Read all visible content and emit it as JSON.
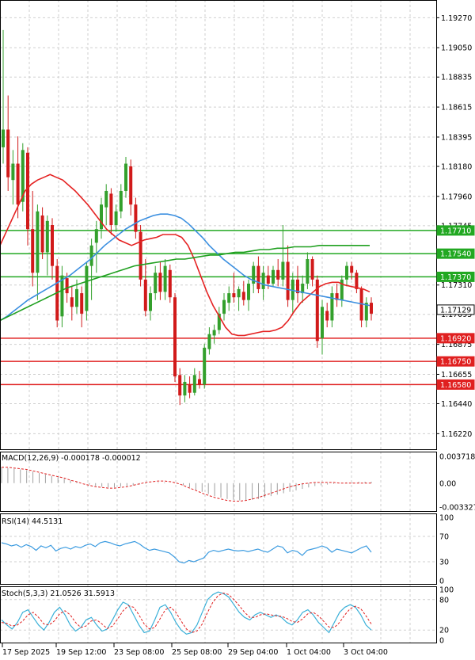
{
  "colors": {
    "background": "#ffffff",
    "grid": "#cfcfcf",
    "frame": "#000000",
    "bull_candle": "#33a02c",
    "bear_candle": "#d11a1a",
    "ma_fast": "#e52222",
    "ma_mid": "#3b8fe0",
    "ma_slow": "#20a020",
    "resistance": "#22a822",
    "support": "#e02020",
    "macd_hist": "#a0a0a0",
    "macd_signal": "#e02020",
    "rsi": "#3b9be0",
    "stoch_main": "#3ab0d8",
    "stoch_signal": "#e02020",
    "price_tag": "#ffffff"
  },
  "chart_data": [
    {
      "type": "candlestick",
      "title": "",
      "ylim": [
        1.161,
        1.194
      ],
      "y_ticks": [
        "1.19270",
        "1.19050",
        "1.18835",
        "1.18615",
        "1.18395",
        "1.18180",
        "1.17960",
        "1.17745",
        "1.17310",
        "1.17095",
        "1.16875",
        "1.16655",
        "1.16440",
        "1.16220"
      ],
      "current_price": "1.17129",
      "current_price_value": 1.17129,
      "resistance_levels": [
        {
          "label": "1.17710",
          "value": 1.1771
        },
        {
          "label": "1.17540",
          "value": 1.1754
        },
        {
          "label": "1.17370",
          "value": 1.1737
        }
      ],
      "support_levels": [
        {
          "label": "1.16920",
          "value": 1.1692
        },
        {
          "label": "1.16750",
          "value": 1.1675
        },
        {
          "label": "1.16580",
          "value": 1.1658
        }
      ],
      "candles": [
        [
          1.1832,
          1.1918,
          1.182,
          1.1845
        ],
        [
          1.1845,
          1.187,
          1.18,
          1.181
        ],
        [
          1.1808,
          1.183,
          1.179,
          1.182
        ],
        [
          1.182,
          1.184,
          1.178,
          1.179
        ],
        [
          1.1792,
          1.1835,
          1.1785,
          1.183
        ],
        [
          1.1828,
          1.1832,
          1.176,
          1.1772
        ],
        [
          1.1772,
          1.18,
          1.173,
          1.174
        ],
        [
          1.174,
          1.179,
          1.172,
          1.1785
        ],
        [
          1.1782,
          1.1788,
          1.175,
          1.1755
        ],
        [
          1.1755,
          1.1782,
          1.1738,
          1.1778
        ],
        [
          1.1775,
          1.178,
          1.1735,
          1.1745
        ],
        [
          1.1745,
          1.175,
          1.17,
          1.1705
        ],
        [
          1.1708,
          1.1745,
          1.17,
          1.1738
        ],
        [
          1.1736,
          1.174,
          1.1718,
          1.1725
        ],
        [
          1.1722,
          1.173,
          1.1705,
          1.1715
        ],
        [
          1.1715,
          1.1735,
          1.171,
          1.1728
        ],
        [
          1.1725,
          1.173,
          1.17,
          1.171
        ],
        [
          1.1712,
          1.1748,
          1.1705,
          1.1745
        ],
        [
          1.1745,
          1.1765,
          1.172,
          1.176
        ],
        [
          1.1762,
          1.1778,
          1.174,
          1.1772
        ],
        [
          1.1772,
          1.1795,
          1.1765,
          1.179
        ],
        [
          1.1788,
          1.1805,
          1.1775,
          1.18
        ],
        [
          1.1798,
          1.1802,
          1.1768,
          1.1775
        ],
        [
          1.1775,
          1.179,
          1.177,
          1.1785
        ],
        [
          1.1785,
          1.1805,
          1.178,
          1.18
        ],
        [
          1.18,
          1.1825,
          1.1795,
          1.182
        ],
        [
          1.1818,
          1.1823,
          1.1782,
          1.179
        ],
        [
          1.179,
          1.1795,
          1.1765,
          1.177
        ],
        [
          1.177,
          1.1775,
          1.173,
          1.1735
        ],
        [
          1.1735,
          1.175,
          1.1708,
          1.1712
        ],
        [
          1.1712,
          1.173,
          1.1705,
          1.1725
        ],
        [
          1.1725,
          1.1745,
          1.172,
          1.174
        ],
        [
          1.174,
          1.1748,
          1.172,
          1.1726
        ],
        [
          1.1726,
          1.175,
          1.172,
          1.1745
        ],
        [
          1.1742,
          1.1746,
          1.1718,
          1.1722
        ],
        [
          1.1722,
          1.1725,
          1.166,
          1.1664
        ],
        [
          1.1665,
          1.167,
          1.1643,
          1.165
        ],
        [
          1.165,
          1.1665,
          1.1645,
          1.166
        ],
        [
          1.1658,
          1.1664,
          1.1648,
          1.1652
        ],
        [
          1.1652,
          1.167,
          1.165,
          1.1665
        ],
        [
          1.1662,
          1.1668,
          1.1655,
          1.1658
        ],
        [
          1.1658,
          1.1688,
          1.1655,
          1.1685
        ],
        [
          1.1684,
          1.17,
          1.168,
          1.1695
        ],
        [
          1.1694,
          1.1702,
          1.1688,
          1.1698
        ],
        [
          1.1698,
          1.1715,
          1.1695,
          1.171
        ],
        [
          1.171,
          1.1725,
          1.1705,
          1.172
        ],
        [
          1.1718,
          1.173,
          1.1712,
          1.1725
        ],
        [
          1.1725,
          1.174,
          1.1718,
          1.1722
        ],
        [
          1.1722,
          1.173,
          1.1712,
          1.1728
        ],
        [
          1.1726,
          1.1734,
          1.1716,
          1.172
        ],
        [
          1.172,
          1.1735,
          1.1712,
          1.1732
        ],
        [
          1.1732,
          1.1748,
          1.1725,
          1.1745
        ],
        [
          1.1745,
          1.1752,
          1.1725,
          1.1728
        ],
        [
          1.1728,
          1.1745,
          1.172,
          1.174
        ],
        [
          1.1738,
          1.1745,
          1.1728,
          1.1732
        ],
        [
          1.1732,
          1.1745,
          1.173,
          1.1742
        ],
        [
          1.1742,
          1.175,
          1.173,
          1.1735
        ],
        [
          1.1735,
          1.1775,
          1.173,
          1.1748
        ],
        [
          1.1748,
          1.176,
          1.1715,
          1.172
        ],
        [
          1.172,
          1.174,
          1.171,
          1.1735
        ],
        [
          1.1735,
          1.1745,
          1.1718,
          1.1725
        ],
        [
          1.1725,
          1.1738,
          1.1718,
          1.1732
        ],
        [
          1.1732,
          1.1755,
          1.1728,
          1.175
        ],
        [
          1.175,
          1.1752,
          1.173,
          1.1735
        ],
        [
          1.1735,
          1.1738,
          1.1685,
          1.169
        ],
        [
          1.1692,
          1.172,
          1.168,
          1.1715
        ],
        [
          1.1712,
          1.1718,
          1.17,
          1.1705
        ],
        [
          1.1705,
          1.173,
          1.17,
          1.1725
        ],
        [
          1.1725,
          1.1732,
          1.1715,
          1.172
        ],
        [
          1.172,
          1.1738,
          1.1715,
          1.1735
        ],
        [
          1.1735,
          1.1748,
          1.173,
          1.1745
        ],
        [
          1.1745,
          1.1748,
          1.1735,
          1.174
        ],
        [
          1.174,
          1.1742,
          1.1725,
          1.1728
        ],
        [
          1.1728,
          1.173,
          1.17,
          1.1705
        ],
        [
          1.1705,
          1.1722,
          1.17,
          1.1718
        ],
        [
          1.1718,
          1.1722,
          1.1705,
          1.171
        ]
      ],
      "ma_fast": [
        1.176,
        1.177,
        1.178,
        1.179,
        1.18,
        1.1805,
        1.1808,
        1.181,
        1.1812,
        1.181,
        1.1808,
        1.1804,
        1.18,
        1.1795,
        1.179,
        1.1784,
        1.1778,
        1.1772,
        1.1768,
        1.1764,
        1.1762,
        1.176,
        1.1762,
        1.1764,
        1.1765,
        1.1766,
        1.1768,
        1.1768,
        1.1768,
        1.1766,
        1.176,
        1.175,
        1.1738,
        1.1726,
        1.1716,
        1.1708,
        1.17,
        1.1695,
        1.1694,
        1.1694,
        1.1695,
        1.1696,
        1.1697,
        1.1697,
        1.1698,
        1.17,
        1.1705,
        1.1712,
        1.1718,
        1.1722,
        1.1726,
        1.173,
        1.1732,
        1.1733,
        1.1733,
        1.1731,
        1.173,
        1.1729,
        1.1728,
        1.1726
      ],
      "ma_mid": [
        1.1705,
        1.1708,
        1.1712,
        1.1716,
        1.172,
        1.1723,
        1.1726,
        1.1729,
        1.1732,
        1.1735,
        1.1738,
        1.1742,
        1.1746,
        1.175,
        1.1755,
        1.176,
        1.1764,
        1.1768,
        1.1772,
        1.1775,
        1.1778,
        1.178,
        1.1782,
        1.1783,
        1.1783,
        1.1782,
        1.178,
        1.1776,
        1.1771,
        1.1766,
        1.176,
        1.1755,
        1.175,
        1.1746,
        1.1742,
        1.1738,
        1.1735,
        1.1733,
        1.1731,
        1.173,
        1.1729,
        1.1728,
        1.1727,
        1.1726,
        1.1725,
        1.1724,
        1.1723,
        1.1722,
        1.1721,
        1.172,
        1.1719,
        1.1718,
        1.1717,
        1.1716
      ],
      "ma_slow": [
        1.1705,
        1.1708,
        1.1711,
        1.1714,
        1.1717,
        1.172,
        1.1723,
        1.1726,
        1.1729,
        1.1731,
        1.1733,
        1.1735,
        1.1737,
        1.1739,
        1.1741,
        1.1743,
        1.1745,
        1.1746,
        1.1747,
        1.1748,
        1.1749,
        1.175,
        1.175,
        1.1751,
        1.1752,
        1.1753,
        1.1753,
        1.1754,
        1.1755,
        1.1755,
        1.1756,
        1.1757,
        1.1757,
        1.1758,
        1.1758,
        1.1759,
        1.1759,
        1.1759,
        1.176,
        1.176,
        1.176,
        1.176,
        1.176,
        1.176,
        1.176
      ]
    },
    {
      "type": "histogram+line",
      "label": "MACD(12,26,9) -0.000178 -0.000012",
      "ylim": [
        -0.003327,
        0.003718
      ],
      "y_ticks": [
        "0.003718",
        "0.00",
        "-0.003327"
      ],
      "histogram": [
        0.0022,
        0.0021,
        0.002,
        0.0019,
        0.0018,
        0.0016,
        0.0014,
        0.0012,
        0.001,
        0.0008,
        0.0006,
        0.0004,
        0.0002,
        0.0,
        -0.0002,
        -0.0004,
        -0.0005,
        -0.0006,
        -0.0006,
        -0.0005,
        -0.0004,
        -0.0003,
        -0.0002,
        -0.0001,
        0.0,
        0.0001,
        0.0001,
        0.0,
        -0.0001,
        -0.0003,
        -0.0006,
        -0.0009,
        -0.0012,
        -0.0015,
        -0.0018,
        -0.002,
        -0.0022,
        -0.0023,
        -0.0024,
        -0.0024,
        -0.0023,
        -0.0022,
        -0.002,
        -0.0018,
        -0.0016,
        -0.0014,
        -0.0012,
        -0.001,
        -0.0008,
        -0.0006,
        -0.0004,
        -0.0003,
        -0.0002,
        -0.0001,
        0.0,
        0.0001,
        0.0001,
        0.0002,
        0.0002,
        0.0002
      ],
      "signal": [
        0.0022,
        0.0022,
        0.0021,
        0.002,
        0.0019,
        0.0017,
        0.0015,
        0.0013,
        0.0011,
        0.0009,
        0.0007,
        0.0004,
        0.0002,
        -0.0001,
        -0.0003,
        -0.0005,
        -0.0006,
        -0.0007,
        -0.0007,
        -0.0006,
        -0.0005,
        -0.0003,
        -0.0001,
        0.0001,
        0.0002,
        0.0003,
        0.0003,
        0.0002,
        0.0,
        -0.0003,
        -0.0007,
        -0.001,
        -0.0014,
        -0.0017,
        -0.002,
        -0.0022,
        -0.0024,
        -0.0025,
        -0.0025,
        -0.0024,
        -0.0022,
        -0.002,
        -0.0017,
        -0.0014,
        -0.0011,
        -0.0008,
        -0.0005,
        -0.0003,
        -0.0001,
        0.0,
        0.0001,
        0.0001,
        0.0001,
        0.0001,
        0.0,
        0.0,
        0.0,
        0.0,
        0.0,
        0.0
      ]
    },
    {
      "type": "line",
      "label": "RSI(14) 44.5131",
      "ylim": [
        0,
        100
      ],
      "y_ticks": [
        "100",
        "70",
        "30",
        "0"
      ],
      "values": [
        60,
        58,
        55,
        57,
        53,
        57,
        54,
        48,
        55,
        52,
        56,
        47,
        51,
        53,
        50,
        54,
        52,
        56,
        58,
        54,
        60,
        62,
        60,
        57,
        55,
        58,
        60,
        62,
        58,
        52,
        48,
        50,
        48,
        46,
        44,
        38,
        30,
        28,
        32,
        30,
        33,
        36,
        45,
        48,
        46,
        48,
        50,
        48,
        47,
        48,
        46,
        48,
        50,
        47,
        45,
        50,
        55,
        53,
        44,
        48,
        46,
        40,
        48,
        50,
        52,
        55,
        52,
        45,
        50,
        48,
        46,
        44,
        48,
        52,
        55,
        45
      ]
    },
    {
      "type": "line",
      "label": "Stoch(5,3,3) 21.0526 31.5913",
      "ylim": [
        0,
        100
      ],
      "y_ticks": [
        "100",
        "80",
        "20",
        "0"
      ],
      "main": [
        40,
        30,
        22,
        35,
        55,
        60,
        45,
        30,
        20,
        35,
        55,
        65,
        50,
        30,
        18,
        25,
        40,
        45,
        30,
        18,
        22,
        40,
        60,
        75,
        70,
        50,
        30,
        15,
        18,
        40,
        65,
        70,
        55,
        35,
        20,
        12,
        15,
        30,
        55,
        80,
        90,
        95,
        92,
        85,
        70,
        55,
        45,
        40,
        50,
        55,
        50,
        45,
        50,
        45,
        35,
        30,
        40,
        55,
        60,
        50,
        35,
        25,
        15,
        35,
        55,
        65,
        70,
        65,
        50,
        30,
        20
      ],
      "signal": [
        35,
        33,
        28,
        30,
        38,
        50,
        55,
        45,
        32,
        30,
        38,
        52,
        58,
        50,
        35,
        25,
        28,
        38,
        40,
        32,
        23,
        28,
        42,
        58,
        68,
        65,
        50,
        32,
        22,
        25,
        42,
        60,
        65,
        55,
        38,
        22,
        15,
        18,
        32,
        55,
        75,
        88,
        93,
        90,
        80,
        68,
        55,
        45,
        45,
        50,
        52,
        50,
        48,
        47,
        43,
        37,
        35,
        42,
        52,
        55,
        48,
        37,
        26,
        25,
        35,
        50,
        62,
        67,
        62,
        48,
        32
      ]
    }
  ],
  "x_axis": {
    "labels": [
      "17 Sep 2025",
      "19 Sep 12:00",
      "23 Sep 08:00",
      "25 Sep 08:00",
      "29 Sep 04:00",
      "1 Oct 04:00",
      "3 Oct 04:00"
    ]
  }
}
